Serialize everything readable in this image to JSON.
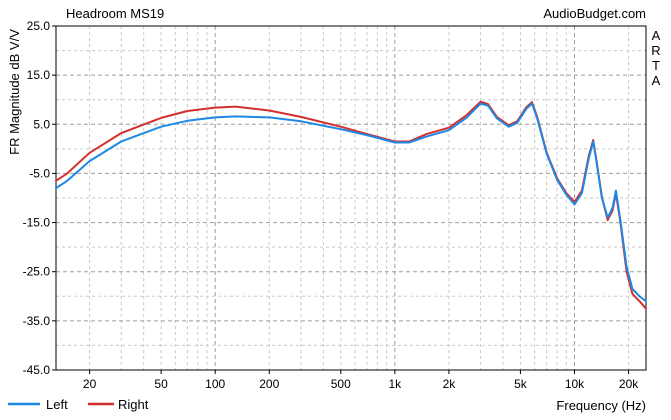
{
  "chart_data": {
    "type": "line",
    "title": "Headroom MS19",
    "source_label": "AudioBudget.com",
    "xlabel": "Frequency (Hz)",
    "ylabel": "FR Magnitude dB V/V",
    "side_label": [
      "A",
      "R",
      "T",
      "A"
    ],
    "xscale": "log",
    "xlim": [
      13,
      25000
    ],
    "ylim": [
      -45,
      25
    ],
    "x_ticks": [
      20,
      50,
      100,
      200,
      500,
      1000,
      2000,
      5000,
      10000,
      20000
    ],
    "x_tick_labels": [
      "20",
      "50",
      "100",
      "200",
      "500",
      "1k",
      "2k",
      "5k",
      "10k",
      "20k"
    ],
    "y_ticks": [
      25,
      15,
      5,
      -5,
      -15,
      -25,
      -35,
      -45
    ],
    "y_tick_labels": [
      "25.0",
      "15.0",
      "5.0",
      "-5.0",
      "-15.0",
      "-25.0",
      "-35.0",
      "-45.0"
    ],
    "grid": true,
    "legend_position": "bottom-left",
    "series": [
      {
        "name": "Left",
        "color": "#1e88e5",
        "points": [
          [
            13,
            -8
          ],
          [
            15,
            -6.5
          ],
          [
            20,
            -2.5
          ],
          [
            30,
            1.5
          ],
          [
            50,
            4.5
          ],
          [
            70,
            5.7
          ],
          [
            100,
            6.4
          ],
          [
            130,
            6.6
          ],
          [
            200,
            6.4
          ],
          [
            300,
            5.6
          ],
          [
            500,
            4.0
          ],
          [
            700,
            2.8
          ],
          [
            1000,
            1.3
          ],
          [
            1200,
            1.3
          ],
          [
            1500,
            2.5
          ],
          [
            2000,
            3.8
          ],
          [
            2500,
            6.3
          ],
          [
            3000,
            9.2
          ],
          [
            3300,
            8.8
          ],
          [
            3700,
            6.2
          ],
          [
            4300,
            4.5
          ],
          [
            4800,
            5.3
          ],
          [
            5400,
            8.2
          ],
          [
            5800,
            9.2
          ],
          [
            6200,
            6.2
          ],
          [
            7000,
            -1.0
          ],
          [
            8000,
            -6.3
          ],
          [
            9000,
            -9.3
          ],
          [
            10000,
            -11.3
          ],
          [
            11000,
            -9.0
          ],
          [
            12000,
            -2.0
          ],
          [
            12700,
            1.5
          ],
          [
            13300,
            -3.0
          ],
          [
            14200,
            -10.0
          ],
          [
            15300,
            -14.0
          ],
          [
            16300,
            -12.0
          ],
          [
            17000,
            -8.5
          ],
          [
            18000,
            -14.5
          ],
          [
            19500,
            -24.0
          ],
          [
            21000,
            -28.5
          ],
          [
            23000,
            -30.0
          ],
          [
            25000,
            -31.0
          ]
        ]
      },
      {
        "name": "Right",
        "color": "#d32f2f",
        "points": [
          [
            13,
            -6.5
          ],
          [
            15,
            -5
          ],
          [
            20,
            -0.8
          ],
          [
            30,
            3.2
          ],
          [
            50,
            6.3
          ],
          [
            70,
            7.7
          ],
          [
            100,
            8.4
          ],
          [
            130,
            8.6
          ],
          [
            200,
            7.8
          ],
          [
            300,
            6.5
          ],
          [
            500,
            4.5
          ],
          [
            700,
            3.0
          ],
          [
            1000,
            1.5
          ],
          [
            1200,
            1.5
          ],
          [
            1500,
            3.0
          ],
          [
            2000,
            4.3
          ],
          [
            2500,
            6.8
          ],
          [
            3000,
            9.6
          ],
          [
            3300,
            9.1
          ],
          [
            3700,
            6.5
          ],
          [
            4300,
            4.8
          ],
          [
            4800,
            5.6
          ],
          [
            5400,
            8.5
          ],
          [
            5800,
            9.5
          ],
          [
            6200,
            6.5
          ],
          [
            7000,
            -0.8
          ],
          [
            8000,
            -6.0
          ],
          [
            9000,
            -9.0
          ],
          [
            10000,
            -10.8
          ],
          [
            11000,
            -8.5
          ],
          [
            12000,
            -1.5
          ],
          [
            12700,
            1.8
          ],
          [
            13300,
            -2.8
          ],
          [
            14200,
            -9.8
          ],
          [
            15300,
            -14.5
          ],
          [
            16300,
            -12.5
          ],
          [
            17000,
            -9.0
          ],
          [
            18000,
            -15.0
          ],
          [
            19500,
            -25.0
          ],
          [
            21000,
            -29.5
          ],
          [
            23000,
            -31.0
          ],
          [
            25000,
            -32.5
          ]
        ]
      }
    ]
  }
}
